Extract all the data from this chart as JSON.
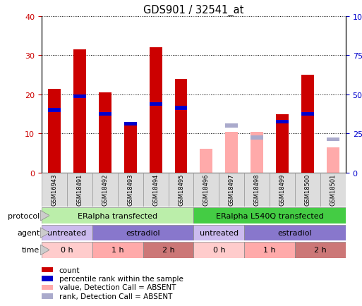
{
  "title": "GDS901 / 32541_at",
  "samples": [
    "GSM16943",
    "GSM18491",
    "GSM18492",
    "GSM18493",
    "GSM18494",
    "GSM18495",
    "GSM18496",
    "GSM18497",
    "GSM18498",
    "GSM18499",
    "GSM18500",
    "GSM18501"
  ],
  "count_values": [
    21.5,
    31.5,
    20.5,
    12.5,
    32.0,
    24.0,
    0,
    0,
    0,
    15.0,
    25.0,
    0
  ],
  "percentile_values": [
    16.0,
    19.5,
    15.0,
    12.5,
    17.5,
    16.5,
    0,
    0,
    0,
    13.0,
    15.0,
    0
  ],
  "absent_count_values": [
    0,
    0,
    0,
    0,
    0,
    0,
    6.0,
    10.5,
    10.5,
    0,
    0,
    6.5
  ],
  "absent_rank_values": [
    0,
    0,
    0,
    0,
    0,
    0,
    0,
    12.0,
    9.0,
    0,
    0,
    8.5
  ],
  "is_absent": [
    false,
    false,
    false,
    false,
    false,
    false,
    true,
    true,
    true,
    false,
    false,
    true
  ],
  "color_red": "#cc0000",
  "color_blue": "#0000cc",
  "color_pink": "#ffaaaa",
  "color_lightblue": "#aaaacc",
  "ylim_left": [
    0,
    40
  ],
  "ylim_right": [
    0,
    100
  ],
  "yticks_left": [
    0,
    10,
    20,
    30,
    40
  ],
  "yticks_right": [
    0,
    25,
    50,
    75,
    100
  ],
  "protocol_groups": [
    {
      "label": "ERalpha transfected",
      "start": 0,
      "end": 6,
      "color": "#bbeeaa"
    },
    {
      "label": "ERalpha L540Q transfected",
      "start": 6,
      "end": 12,
      "color": "#44cc44"
    }
  ],
  "agent_groups": [
    {
      "label": "untreated",
      "start": 0,
      "end": 2,
      "color": "#ccbbee"
    },
    {
      "label": "estradiol",
      "start": 2,
      "end": 6,
      "color": "#8877cc"
    },
    {
      "label": "untreated",
      "start": 6,
      "end": 8,
      "color": "#ccbbee"
    },
    {
      "label": "estradiol",
      "start": 8,
      "end": 12,
      "color": "#8877cc"
    }
  ],
  "time_groups": [
    {
      "label": "0 h",
      "start": 0,
      "end": 2,
      "color": "#ffcccc"
    },
    {
      "label": "1 h",
      "start": 2,
      "end": 4,
      "color": "#ffaaaa"
    },
    {
      "label": "2 h",
      "start": 4,
      "end": 6,
      "color": "#cc7777"
    },
    {
      "label": "0 h",
      "start": 6,
      "end": 8,
      "color": "#ffcccc"
    },
    {
      "label": "1 h",
      "start": 8,
      "end": 10,
      "color": "#ffaaaa"
    },
    {
      "label": "2 h",
      "start": 10,
      "end": 12,
      "color": "#cc7777"
    }
  ],
  "legend_items": [
    {
      "label": "count",
      "color": "#cc0000"
    },
    {
      "label": "percentile rank within the sample",
      "color": "#0000cc"
    },
    {
      "label": "value, Detection Call = ABSENT",
      "color": "#ffaaaa"
    },
    {
      "label": "rank, Detection Call = ABSENT",
      "color": "#aaaacc"
    }
  ],
  "sample_bg_color": "#dddddd",
  "sample_edge_color": "#999999",
  "row_edge_color": "#888888",
  "bg_color": "#ffffff"
}
